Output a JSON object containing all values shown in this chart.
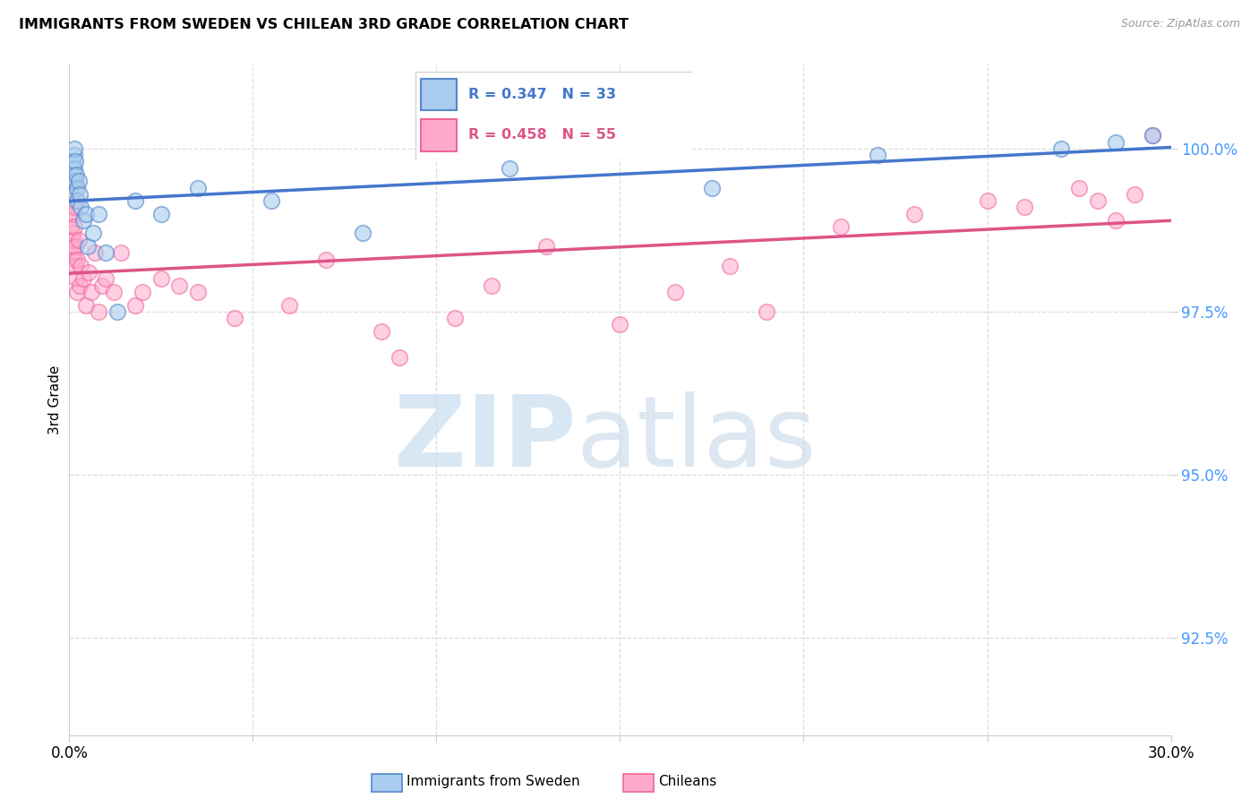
{
  "title": "IMMIGRANTS FROM SWEDEN VS CHILEAN 3RD GRADE CORRELATION CHART",
  "source": "Source: ZipAtlas.com",
  "ylabel": "3rd Grade",
  "y_tick_values": [
    92.5,
    95.0,
    97.5,
    100.0
  ],
  "x_range": [
    0.0,
    30.0
  ],
  "y_range": [
    91.0,
    101.3
  ],
  "legend_R_blue": "R = 0.347",
  "legend_N_blue": "N = 33",
  "legend_R_pink": "R = 0.458",
  "legend_N_pink": "N = 55",
  "legend_label_blue": "Immigrants from Sweden",
  "legend_label_pink": "Chileans",
  "blue_face": "#AACCEE",
  "blue_edge": "#5588CC",
  "pink_face": "#FFAACC",
  "pink_edge": "#EE6699",
  "blue_line": "#4477CC",
  "pink_line": "#DD5588",
  "sweden_x": [
    0.05,
    0.08,
    0.1,
    0.12,
    0.13,
    0.14,
    0.15,
    0.16,
    0.17,
    0.18,
    0.2,
    0.22,
    0.25,
    0.28,
    0.32,
    0.38,
    0.45,
    0.5,
    0.65,
    0.8,
    1.0,
    1.3,
    1.8,
    2.5,
    3.5,
    5.5,
    8.0,
    12.0,
    17.5,
    22.0,
    27.0,
    28.5,
    29.5
  ],
  "sweden_y": [
    99.3,
    99.5,
    99.8,
    99.6,
    99.9,
    99.7,
    100.0,
    99.8,
    99.5,
    99.6,
    99.4,
    99.2,
    99.5,
    99.3,
    99.1,
    98.9,
    99.0,
    98.5,
    98.7,
    99.0,
    98.4,
    97.5,
    99.2,
    99.0,
    99.4,
    99.2,
    98.7,
    99.7,
    99.4,
    99.9,
    100.0,
    100.1,
    100.2
  ],
  "chilean_x": [
    0.03,
    0.05,
    0.07,
    0.08,
    0.09,
    0.1,
    0.11,
    0.12,
    0.13,
    0.14,
    0.15,
    0.16,
    0.17,
    0.18,
    0.2,
    0.22,
    0.25,
    0.28,
    0.32,
    0.38,
    0.45,
    0.52,
    0.6,
    0.7,
    0.8,
    0.9,
    1.0,
    1.2,
    1.4,
    1.8,
    2.0,
    2.5,
    3.0,
    3.5,
    4.5,
    6.0,
    7.0,
    8.5,
    9.0,
    10.5,
    11.5,
    13.0,
    15.0,
    16.5,
    18.0,
    19.0,
    21.0,
    23.0,
    25.0,
    26.0,
    27.5,
    28.0,
    28.5,
    29.0,
    29.5
  ],
  "chilean_y": [
    98.8,
    99.0,
    98.5,
    99.2,
    98.7,
    98.4,
    98.6,
    99.0,
    98.3,
    99.1,
    98.8,
    98.2,
    98.5,
    98.0,
    97.8,
    98.3,
    98.6,
    97.9,
    98.2,
    98.0,
    97.6,
    98.1,
    97.8,
    98.4,
    97.5,
    97.9,
    98.0,
    97.8,
    98.4,
    97.6,
    97.8,
    98.0,
    97.9,
    97.8,
    97.4,
    97.6,
    98.3,
    97.2,
    96.8,
    97.4,
    97.9,
    98.5,
    97.3,
    97.8,
    98.2,
    97.5,
    98.8,
    99.0,
    99.2,
    99.1,
    99.4,
    99.2,
    98.9,
    99.3,
    100.2
  ],
  "watermark_zip_color": "#C8DDF0",
  "watermark_atlas_color": "#C0D5E8",
  "grid_color": "#DDDDDD",
  "spine_color": "#CCCCCC",
  "ytick_color": "#4499FF",
  "title_fontsize": 11.5,
  "source_fontsize": 9,
  "tick_fontsize": 12
}
